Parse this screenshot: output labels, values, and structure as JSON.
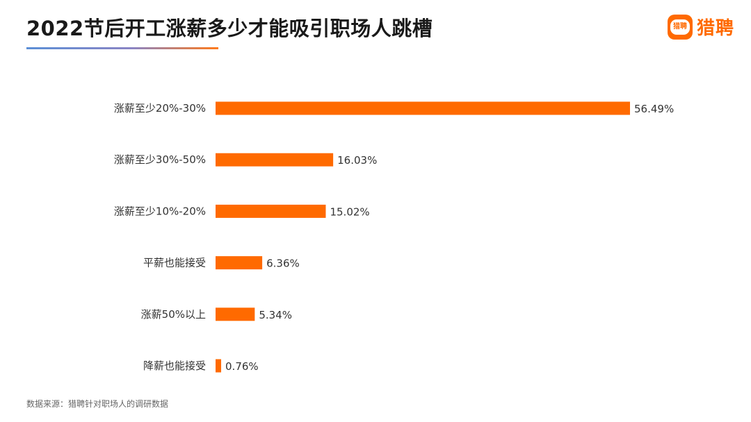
{
  "header": {
    "title": "2022节后开工涨薪多少才能吸引职场人跳槽",
    "brand_name": "猎聘",
    "brand_icon_text": "猎聘",
    "brand_color": "#ff6a00"
  },
  "chart_data": {
    "type": "bar",
    "orientation": "horizontal",
    "categories": [
      "涨薪至少20%-30%",
      "涨薪至少30%-50%",
      "涨薪至少10%-20%",
      "平薪也能接受",
      "涨薪50%以上",
      "降薪也能接受"
    ],
    "values": [
      56.49,
      16.03,
      15.02,
      6.36,
      5.34,
      0.76
    ],
    "value_labels": [
      "56.49%",
      "16.03%",
      "15.02%",
      "6.36%",
      "5.34%",
      "0.76%"
    ],
    "unit": "%",
    "bar_color": "#ff6a00",
    "xlim": [
      0,
      56.49
    ],
    "grid": false,
    "legend": "none"
  },
  "footer": {
    "source": "数据来源：猎聘针对职场人的调研数据"
  }
}
